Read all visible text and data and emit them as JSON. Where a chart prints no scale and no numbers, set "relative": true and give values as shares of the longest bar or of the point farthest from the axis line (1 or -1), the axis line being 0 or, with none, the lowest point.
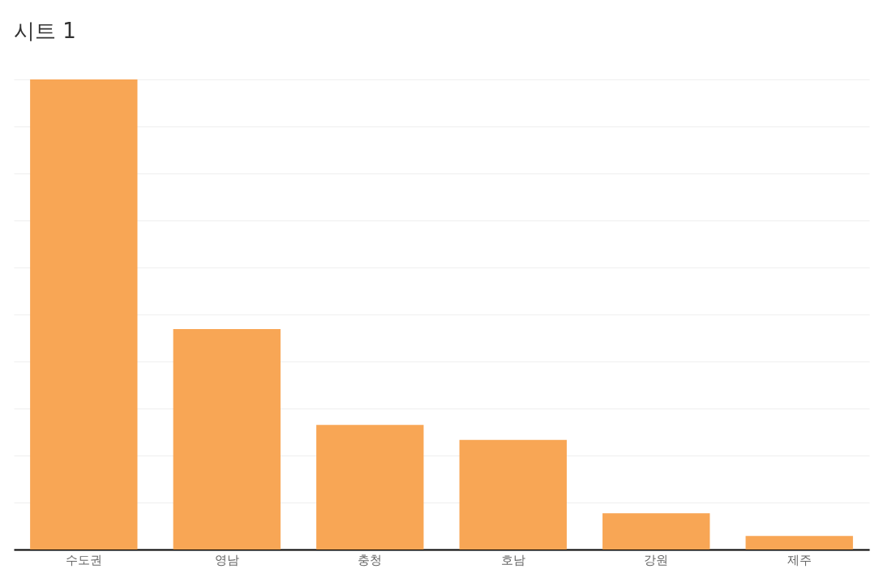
{
  "chart_data": {
    "type": "bar",
    "title": "시트 1",
    "categories": [
      "수도권",
      "영남",
      "충청",
      "호남",
      "강원",
      "제주"
    ],
    "values": [
      1,
      0.469,
      0.265,
      0.233,
      0.077,
      0.029
    ],
    "color": "#f8a655",
    "relative": true,
    "grid": "y"
  }
}
